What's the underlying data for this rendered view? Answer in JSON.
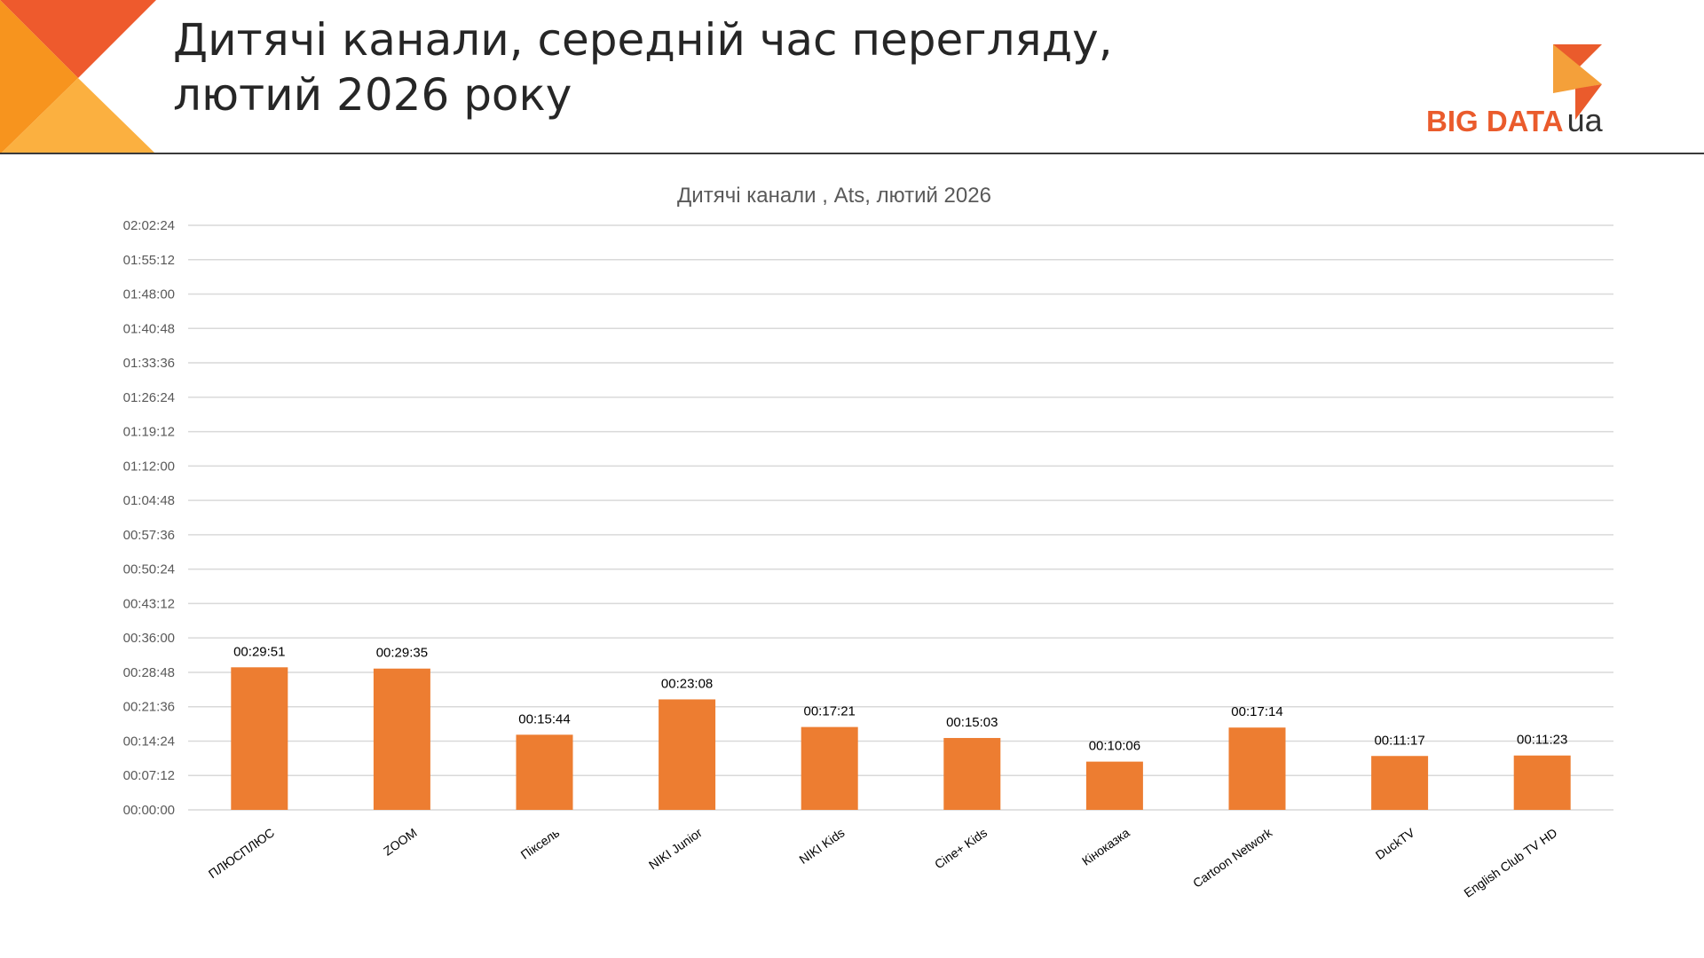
{
  "header": {
    "title_line1": "Дитячі канали, середній час перегляду,",
    "title_line2": "лютий 2026 року"
  },
  "logo": {
    "text": "BIG DATA",
    "suffix": "ua"
  },
  "colors": {
    "bar": "#ed7d31",
    "logo_orange": "#ea5b2c",
    "corner_dark": "#ee5a2d",
    "corner_light": "#f9a541"
  },
  "chart_data": {
    "type": "bar",
    "title": "Дитячі канали , Ats, лютий 2026",
    "xlabel": "",
    "ylabel": "",
    "ylim": [
      "00:00:00",
      "02:02:24"
    ],
    "y_ticks": [
      "00:00:00",
      "00:07:12",
      "00:14:24",
      "00:21:36",
      "00:28:48",
      "00:36:00",
      "00:43:12",
      "00:50:24",
      "00:57:36",
      "01:04:48",
      "01:12:00",
      "01:19:12",
      "01:26:24",
      "01:33:36",
      "01:40:48",
      "01:48:00",
      "01:55:12",
      "02:02:24"
    ],
    "grid": true,
    "legend": "none",
    "categories": [
      "ПЛЮСПЛЮС",
      "ZOOM",
      "Піксель",
      "NIKI Junior",
      "NIKI Kids",
      "Cine+ Kids",
      "Кіноказка",
      "Cartoon Network",
      "DuckTV",
      "English Club TV HD"
    ],
    "values": [
      "00:29:51",
      "00:29:35",
      "00:15:44",
      "00:23:08",
      "00:17:21",
      "00:15:03",
      "00:10:06",
      "00:17:14",
      "00:11:17",
      "00:11:23"
    ]
  }
}
